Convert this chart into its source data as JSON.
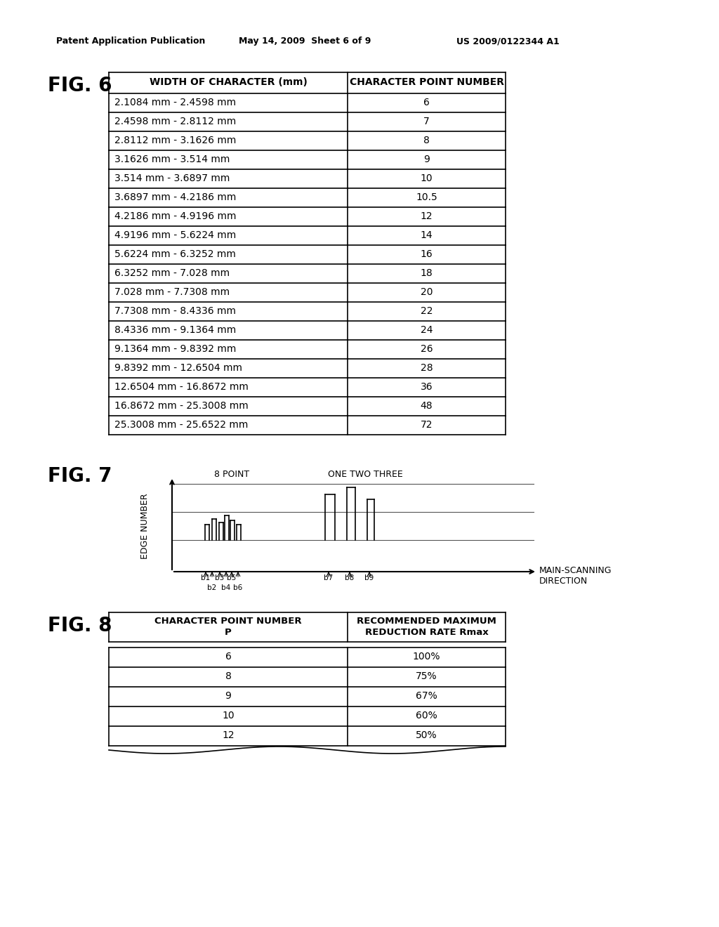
{
  "header_text": "Patent Application Publication    May 14, 2009  Sheet 6 of 9        US 2009/0122344 A1",
  "fig6_label": "FIG. 6",
  "fig6_col1_header": "WIDTH OF CHARACTER (mm)",
  "fig6_col2_header": "CHARACTER POINT NUMBER",
  "fig6_rows": [
    [
      "2.1084 mm - 2.4598 mm",
      "6"
    ],
    [
      "2.4598 mm - 2.8112 mm",
      "7"
    ],
    [
      "2.8112 mm - 3.1626 mm",
      "8"
    ],
    [
      "3.1626 mm - 3.514 mm",
      "9"
    ],
    [
      "3.514 mm - 3.6897 mm",
      "10"
    ],
    [
      "3.6897 mm - 4.2186 mm",
      "10.5"
    ],
    [
      "4.2186 mm - 4.9196 mm",
      "12"
    ],
    [
      "4.9196 mm - 5.6224 mm",
      "14"
    ],
    [
      "5.6224 mm - 6.3252 mm",
      "16"
    ],
    [
      "6.3252 mm - 7.028 mm",
      "18"
    ],
    [
      "7.028 mm - 7.7308 mm",
      "20"
    ],
    [
      "7.7308 mm - 8.4336 mm",
      "22"
    ],
    [
      "8.4336 mm - 9.1364 mm",
      "24"
    ],
    [
      "9.1364 mm - 9.8392 mm",
      "26"
    ],
    [
      "9.8392 mm - 12.6504 mm",
      "28"
    ],
    [
      "12.6504 mm - 16.8672 mm",
      "36"
    ],
    [
      "16.8672 mm - 25.3008 mm",
      "48"
    ],
    [
      "25.3008 mm - 25.6522 mm",
      "72"
    ]
  ],
  "fig7_label": "FIG. 7",
  "fig7_ylabel": "EDGE NUMBER",
  "fig7_xlabel": "MAIN-SCANNING\nDIRECTION",
  "fig7_label_8point": "8 POINT",
  "fig7_label_onetwothree": "ONE TWO THREE",
  "fig8_label": "FIG. 8",
  "fig8_col1_header": "CHARACTER POINT NUMBER\nP",
  "fig8_col2_header": "RECOMMENDED MAXIMUM\nREDUCTION RATE Rmax",
  "fig8_rows": [
    [
      "6",
      "100%"
    ],
    [
      "8",
      "75%"
    ],
    [
      "9",
      "67%"
    ],
    [
      "10",
      "60%"
    ],
    [
      "12",
      "50%"
    ]
  ],
  "background_color": "#ffffff",
  "line_color": "#000000",
  "text_color": "#000000"
}
